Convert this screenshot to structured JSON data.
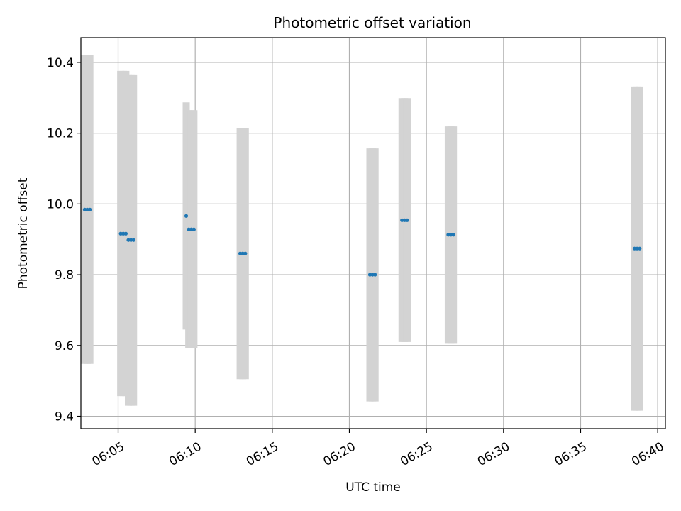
{
  "chart_data": {
    "type": "scatter",
    "title": "Photometric offset variation",
    "xlabel": "UTC time",
    "ylabel": "Photometric offset",
    "x_axis_kind": "time",
    "xlim": [
      "06:02:35",
      "06:40:30"
    ],
    "ylim": [
      9.365,
      10.47
    ],
    "x_ticks": [
      "06:05",
      "06:10",
      "06:15",
      "06:20",
      "06:25",
      "06:30",
      "06:35",
      "06:40"
    ],
    "y_ticks": [
      9.4,
      9.6,
      9.8,
      10.0,
      10.2,
      10.4
    ],
    "grid": true,
    "colors": {
      "points": "#1f77b4",
      "error_bars": "#d3d3d3",
      "grid": "#b0b0b0"
    },
    "series": [
      {
        "points": [
          {
            "time": "06:02:50",
            "value": 9.984,
            "low": 9.548,
            "high": 10.42
          },
          {
            "time": "06:03:00",
            "value": 9.984,
            "low": 9.548,
            "high": 10.42
          },
          {
            "time": "06:03:10",
            "value": 9.984,
            "low": 9.548,
            "high": 10.42
          },
          {
            "time": "06:05:10",
            "value": 9.916,
            "low": 9.457,
            "high": 10.376
          },
          {
            "time": "06:05:20",
            "value": 9.916,
            "low": 9.457,
            "high": 10.376
          },
          {
            "time": "06:05:30",
            "value": 9.916,
            "low": 9.457,
            "high": 10.376
          },
          {
            "time": "06:05:40",
            "value": 9.898,
            "low": 9.43,
            "high": 10.366
          },
          {
            "time": "06:05:50",
            "value": 9.898,
            "low": 9.43,
            "high": 10.366
          },
          {
            "time": "06:06:00",
            "value": 9.898,
            "low": 9.43,
            "high": 10.366
          },
          {
            "time": "06:09:25",
            "value": 9.966,
            "low": 9.645,
            "high": 10.287
          },
          {
            "time": "06:09:35",
            "value": 9.928,
            "low": 9.592,
            "high": 10.265
          },
          {
            "time": "06:09:45",
            "value": 9.928,
            "low": 9.592,
            "high": 10.265
          },
          {
            "time": "06:09:55",
            "value": 9.928,
            "low": 9.592,
            "high": 10.265
          },
          {
            "time": "06:12:55",
            "value": 9.86,
            "low": 9.505,
            "high": 10.215
          },
          {
            "time": "06:13:05",
            "value": 9.86,
            "low": 9.505,
            "high": 10.215
          },
          {
            "time": "06:13:15",
            "value": 9.86,
            "low": 9.505,
            "high": 10.215
          },
          {
            "time": "06:21:20",
            "value": 9.8,
            "low": 9.442,
            "high": 10.157
          },
          {
            "time": "06:21:30",
            "value": 9.8,
            "low": 9.442,
            "high": 10.157
          },
          {
            "time": "06:21:40",
            "value": 9.8,
            "low": 9.442,
            "high": 10.157
          },
          {
            "time": "06:23:25",
            "value": 9.954,
            "low": 9.61,
            "high": 10.299
          },
          {
            "time": "06:23:35",
            "value": 9.954,
            "low": 9.61,
            "high": 10.299
          },
          {
            "time": "06:23:45",
            "value": 9.954,
            "low": 9.61,
            "high": 10.299
          },
          {
            "time": "06:26:25",
            "value": 9.913,
            "low": 9.607,
            "high": 10.219
          },
          {
            "time": "06:26:35",
            "value": 9.913,
            "low": 9.607,
            "high": 10.219
          },
          {
            "time": "06:26:45",
            "value": 9.913,
            "low": 9.607,
            "high": 10.219
          },
          {
            "time": "06:38:30",
            "value": 9.874,
            "low": 9.416,
            "high": 10.332
          },
          {
            "time": "06:38:40",
            "value": 9.874,
            "low": 9.416,
            "high": 10.332
          },
          {
            "time": "06:38:50",
            "value": 9.874,
            "low": 9.416,
            "high": 10.332
          }
        ]
      }
    ]
  }
}
